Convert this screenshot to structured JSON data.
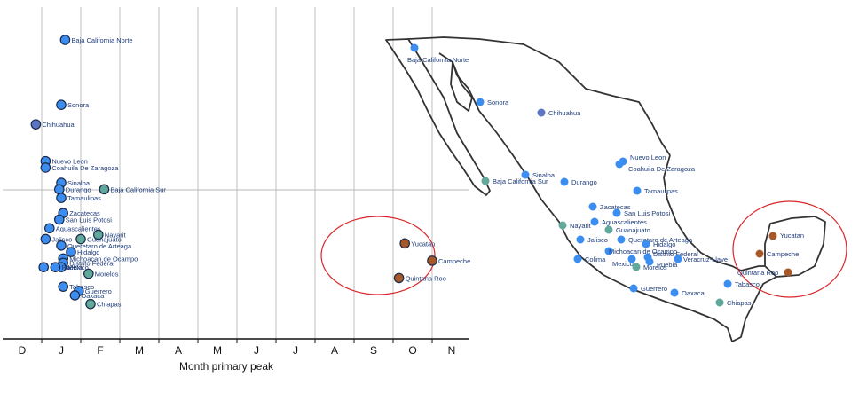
{
  "colors": {
    "blue": "#3b8ef0",
    "steel": "#5b74c4",
    "teal": "#5fa89a",
    "brown": "#a6582a",
    "label": "#1f3d7a",
    "highlight": "#d9262a"
  },
  "chart_data": {
    "type": "scatter",
    "xlabel": "Month primary peak",
    "categories": [
      "D",
      "J",
      "F",
      "M",
      "A",
      "M",
      "J",
      "J",
      "A",
      "S",
      "O",
      "N"
    ],
    "grid": true,
    "points": [
      {
        "label": "Baja California Norte",
        "x": 1.1,
        "y": 12,
        "color": "blue"
      },
      {
        "label": "Sonora",
        "x": 1.0,
        "y": 42,
        "color": "blue"
      },
      {
        "label": "Chihuahua",
        "x": 0.35,
        "y": 51,
        "color": "steel"
      },
      {
        "label": "Nuevo Leon",
        "x": 0.6,
        "y": 68,
        "color": "blue"
      },
      {
        "label": "Coahuila De Zaragoza",
        "x": 0.6,
        "y": 71,
        "color": "blue"
      },
      {
        "label": "Sinaloa",
        "x": 1.0,
        "y": 78,
        "color": "blue"
      },
      {
        "label": "Durango",
        "x": 0.95,
        "y": 81,
        "color": "blue"
      },
      {
        "label": "Baja California Sur",
        "x": 2.1,
        "y": 81,
        "color": "teal"
      },
      {
        "label": "Tamaulipas",
        "x": 1.0,
        "y": 85,
        "color": "blue"
      },
      {
        "label": "Zacatecas",
        "x": 1.05,
        "y": 92,
        "color": "blue"
      },
      {
        "label": "San Luis Potosi",
        "x": 0.95,
        "y": 95,
        "color": "blue"
      },
      {
        "label": "Aguascalientes",
        "x": 0.7,
        "y": 99,
        "color": "blue"
      },
      {
        "label": "Jalisco",
        "x": 0.6,
        "y": 104,
        "color": "blue"
      },
      {
        "label": "Nayarit",
        "x": 1.95,
        "y": 102,
        "color": "teal"
      },
      {
        "label": "Guanajuato",
        "x": 1.5,
        "y": 104,
        "color": "teal"
      },
      {
        "label": "Queretaro de Arteaga",
        "x": 1.0,
        "y": 107,
        "color": "blue"
      },
      {
        "label": "Hidalgo",
        "x": 1.25,
        "y": 110,
        "color": "blue"
      },
      {
        "label": "Michoacan de Ocampo",
        "x": 1.05,
        "y": 113,
        "color": "blue"
      },
      {
        "label": "Distrito Federal",
        "x": 1.05,
        "y": 115,
        "color": "blue"
      },
      {
        "label": "Colima",
        "x": 0.55,
        "y": 117,
        "color": "blue"
      },
      {
        "label": "Mexico",
        "x": 1.0,
        "y": 117,
        "color": "blue"
      },
      {
        "label": "Puebla",
        "x": 0.85,
        "y": 117,
        "color": "blue"
      },
      {
        "label": "Morelos",
        "x": 1.7,
        "y": 120,
        "color": "teal"
      },
      {
        "label": "Tabasco",
        "x": 1.05,
        "y": 126,
        "color": "blue"
      },
      {
        "label": "Guerrero",
        "x": 1.45,
        "y": 128,
        "color": "blue"
      },
      {
        "label": "Oaxaca",
        "x": 1.35,
        "y": 130,
        "color": "blue"
      },
      {
        "label": "Chiapas",
        "x": 1.75,
        "y": 134,
        "color": "teal"
      },
      {
        "label": "Yucatan",
        "x": 9.8,
        "y": 106,
        "color": "brown"
      },
      {
        "label": "Campeche",
        "x": 10.5,
        "y": 114,
        "color": "brown"
      },
      {
        "label": "Quintana Roo",
        "x": 9.65,
        "y": 122,
        "color": "brown"
      }
    ]
  },
  "map": {
    "points": [
      {
        "label": "Baja California Norte",
        "color": "blue"
      },
      {
        "label": "Sonora",
        "color": "blue"
      },
      {
        "label": "Chihuahua",
        "color": "steel"
      },
      {
        "label": "Nuevo Leon",
        "color": "blue"
      },
      {
        "label": "Coahuila De Zaragoza",
        "color": "blue"
      },
      {
        "label": "Sinaloa",
        "color": "blue"
      },
      {
        "label": "Baja California Sur",
        "color": "teal"
      },
      {
        "label": "Durango",
        "color": "blue"
      },
      {
        "label": "Tamaulipas",
        "color": "blue"
      },
      {
        "label": "Zacatecas",
        "color": "blue"
      },
      {
        "label": "San Luis Potosi",
        "color": "blue"
      },
      {
        "label": "Nayarit",
        "color": "teal"
      },
      {
        "label": "Aguascalientes",
        "color": "blue"
      },
      {
        "label": "Guanajuato",
        "color": "teal"
      },
      {
        "label": "Jalisco",
        "color": "blue"
      },
      {
        "label": "Queretaro de Arteaga",
        "color": "blue"
      },
      {
        "label": "Hidalgo",
        "color": "blue"
      },
      {
        "label": "Michoacan de Ocampo",
        "color": "blue"
      },
      {
        "label": "Distrito Federal",
        "color": "blue"
      },
      {
        "label": "Colima",
        "color": "blue"
      },
      {
        "label": "Mexico",
        "color": "blue"
      },
      {
        "label": "Puebla",
        "color": "blue"
      },
      {
        "label": "Veracruz-Llave",
        "color": "blue"
      },
      {
        "label": "Morelos",
        "color": "teal"
      },
      {
        "label": "Guerrero",
        "color": "blue"
      },
      {
        "label": "Oaxaca",
        "color": "blue"
      },
      {
        "label": "Tabasco",
        "color": "blue"
      },
      {
        "label": "Chiapas",
        "color": "teal"
      },
      {
        "label": "Yucatan",
        "color": "brown"
      },
      {
        "label": "Campeche",
        "color": "brown"
      },
      {
        "label": "Quintana Roo",
        "color": "brown"
      }
    ]
  }
}
